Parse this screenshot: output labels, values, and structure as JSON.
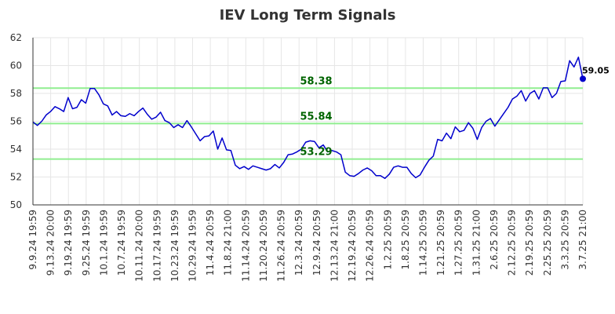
{
  "chart_data": {
    "type": "line",
    "title": "IEV Long Term Signals",
    "xlabel": "",
    "ylabel": "",
    "ylim": [
      50,
      62
    ],
    "y_ticks": [
      50,
      52,
      54,
      56,
      58,
      60,
      62
    ],
    "grid": true,
    "legend": "none",
    "line_color": "#0000cc",
    "signal_color": "#90ee90",
    "signal_label_color": "#006400",
    "x_tick_labels": [
      "9.9.24 19:59",
      "9.13.24 20:00",
      "9.19.24 19:59",
      "9.25.24 19:59",
      "10.1.24 19:59",
      "10.7.24 19:59",
      "10.11.24 20:00",
      "10.17.24 19:59",
      "10.23.24 19:59",
      "10.29.24 19:59",
      "11.4.24 20:59",
      "11.8.24 21:00",
      "11.14.24 20:59",
      "11.20.24 20:59",
      "11.26.24 20:59",
      "12.3.24 20:59",
      "12.9.24 20:59",
      "12.13.24 21:00",
      "12.19.24 20:59",
      "12.26.24 20:59",
      "1.2.25 20:59",
      "1.8.25 20:59",
      "1.14.25 20:59",
      "1.21.25 20:59",
      "1.27.25 20:59",
      "1.31.25 21:00",
      "2.6.25 20:59",
      "2.12.25 20:59",
      "2.19.25 20:59",
      "2.25.25 20:59",
      "3.3.25 20:59",
      "3.7.25 21:00"
    ],
    "signals": [
      {
        "value": 58.38,
        "label": "58.38"
      },
      {
        "value": 55.84,
        "label": "55.84"
      },
      {
        "value": 53.29,
        "label": "53.29"
      }
    ],
    "last_value_label": "59.05",
    "series": [
      {
        "values": [
          55.95,
          55.7,
          56.0,
          56.45,
          56.7,
          57.05,
          56.9,
          56.7,
          57.7,
          56.9,
          57.0,
          57.55,
          57.3,
          58.35,
          58.35,
          57.9,
          57.25,
          57.1,
          56.45,
          56.7,
          56.4,
          56.35,
          56.55,
          56.4,
          56.7,
          56.95,
          56.5,
          56.15,
          56.3,
          56.65,
          56.05,
          55.9,
          55.55,
          55.75,
          55.55,
          56.05,
          55.6,
          55.1,
          54.6,
          54.9,
          54.95,
          55.3,
          54.0,
          54.8,
          53.95,
          53.9,
          52.85,
          52.6,
          52.75,
          52.55,
          52.8,
          52.7,
          52.6,
          52.5,
          52.6,
          52.9,
          52.65,
          53.05,
          53.6,
          53.65,
          53.8,
          54.0,
          54.5,
          54.6,
          54.55,
          54.1,
          54.3,
          53.8,
          53.9,
          53.8,
          53.6,
          52.35,
          52.1,
          52.05,
          52.25,
          52.5,
          52.65,
          52.45,
          52.1,
          52.1,
          51.9,
          52.2,
          52.7,
          52.8,
          52.7,
          52.7,
          52.25,
          51.95,
          52.15,
          52.7,
          53.2,
          53.5,
          54.7,
          54.6,
          55.15,
          54.75,
          55.6,
          55.25,
          55.35,
          55.9,
          55.5,
          54.7,
          55.55,
          56.0,
          56.2,
          55.65,
          56.1,
          56.55,
          57.0,
          57.6,
          57.8,
          58.2,
          57.45,
          58.0,
          58.2,
          57.6,
          58.4,
          58.4,
          57.7,
          58.0,
          58.85,
          58.9,
          60.35,
          59.9,
          60.6,
          59.05
        ]
      }
    ]
  }
}
